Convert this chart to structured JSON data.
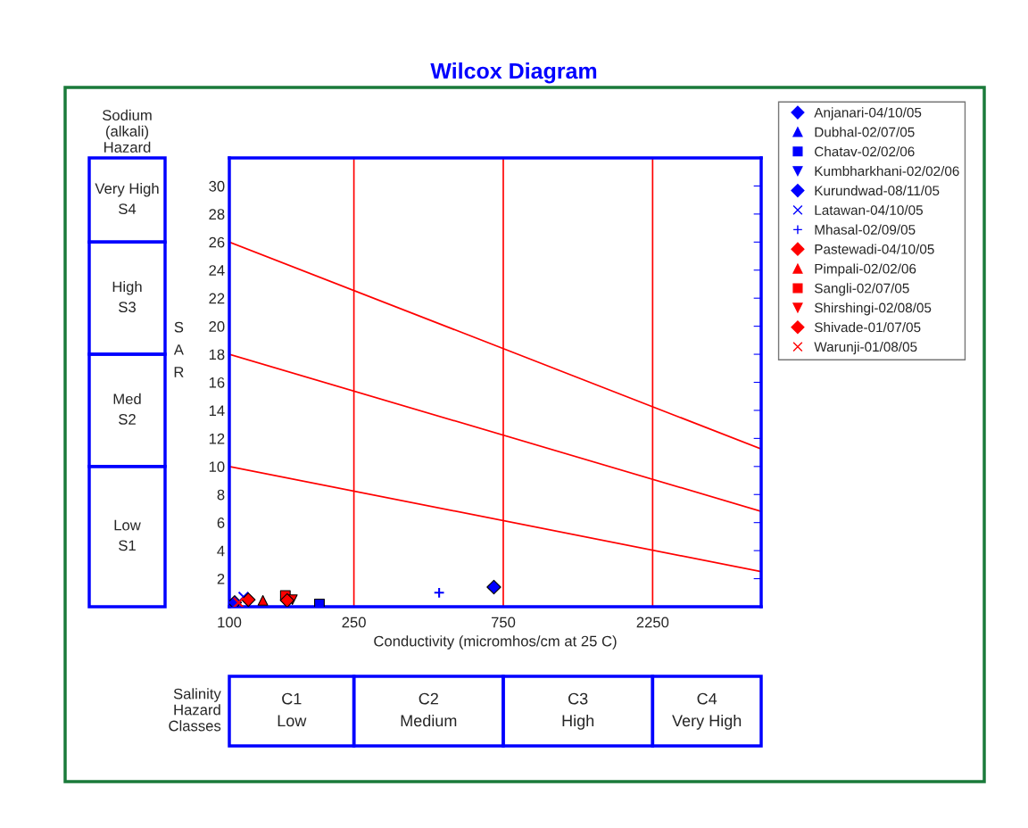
{
  "chart_data": {
    "type": "scatter",
    "title": "Wilcox Diagram",
    "xlabel": "Conductivity (micromhos/cm at 25 C)",
    "ylabel": "SAR",
    "log": "x",
    "xlim": [
      100,
      5000
    ],
    "xticks": [
      100,
      250,
      750,
      2250
    ],
    "ylim": [
      0,
      32
    ],
    "yticks": [
      2,
      4,
      6,
      8,
      10,
      12,
      14,
      16,
      18,
      20,
      22,
      24,
      26,
      28,
      30
    ],
    "grid": false,
    "legend": "right",
    "ref_lines": [
      {
        "axis": "x",
        "value": 250,
        "color": "#ff0000"
      },
      {
        "axis": "x",
        "value": 750,
        "color": "#ff0000"
      },
      {
        "axis": "x",
        "value": 2250,
        "color": "#ff0000"
      }
    ],
    "annotations": [
      "Sodium (alkali) Hazard",
      "Very High S4",
      "High S3",
      "Med S2",
      "Low S1",
      "Salinity Hazard Classes",
      "C1 Low",
      "C2 Medium",
      "C3 High",
      "C4 Very High"
    ],
    "series": [
      {
        "name": "Anjanari-04/10/05",
        "color": "#0000ff",
        "marker": "diamond",
        "x": [
          700
        ],
        "values": [
          1.4
        ]
      },
      {
        "name": "Dubhal-02/07/05",
        "color": "#0000ff",
        "marker": "triangle",
        "x": [
          null
        ],
        "values": [
          null
        ]
      },
      {
        "name": "Chatav-02/02/06",
        "color": "#0000ff",
        "marker": "square",
        "x": [
          194
        ],
        "values": [
          0.2
        ]
      },
      {
        "name": "Kumbharkhani-02/02/06",
        "color": "#0000ff",
        "marker": "triangle_down",
        "x": [
          null
        ],
        "values": [
          null
        ]
      },
      {
        "name": "Kurundwad-08/11/05",
        "color": "#0000ff",
        "marker": "diamond",
        "x": [
          104
        ],
        "values": [
          0.3
        ]
      },
      {
        "name": "Latawan-04/10/05",
        "color": "#0000ff",
        "marker": "cross",
        "x": [
          111
        ],
        "values": [
          0.7
        ]
      },
      {
        "name": "Mhasal-02/09/05",
        "color": "#0000ff",
        "marker": "plus",
        "x": [
          468
        ],
        "values": [
          1.0
        ]
      },
      {
        "name": "Pastewadi-04/10/05",
        "color": "#ff0000",
        "marker": "diamond",
        "x": [
          115
        ],
        "values": [
          0.5
        ]
      },
      {
        "name": "Pimpali-02/02/06",
        "color": "#ff0000",
        "marker": "triangle",
        "x": [
          128
        ],
        "values": [
          0.45
        ]
      },
      {
        "name": "Sangli-02/07/05",
        "color": "#ff0000",
        "marker": "square",
        "x": [
          151
        ],
        "values": [
          0.8
        ]
      },
      {
        "name": "Shirshingi-02/08/05",
        "color": "#ff0000",
        "marker": "triangle_down",
        "x": [
          159
        ],
        "values": [
          0.5
        ]
      },
      {
        "name": "Shivade-01/07/05",
        "color": "#ff0000",
        "marker": "diamond",
        "x": [
          153
        ],
        "values": [
          0.45
        ]
      },
      {
        "name": "Warunji-01/08/05",
        "color": "#ff0000",
        "marker": "cross",
        "x": [
          107
        ],
        "values": [
          0.3
        ]
      },
      {
        "type": "line",
        "color": "#ff0000",
        "x": [
          100,
          5000
        ],
        "values": [
          26,
          11.25
        ]
      },
      {
        "type": "line",
        "color": "#ff0000",
        "x": [
          100,
          5000
        ],
        "values": [
          18,
          6.8
        ]
      },
      {
        "type": "line",
        "color": "#ff0000",
        "x": [
          100,
          5000
        ],
        "values": [
          10,
          2.5
        ]
      }
    ]
  }
}
